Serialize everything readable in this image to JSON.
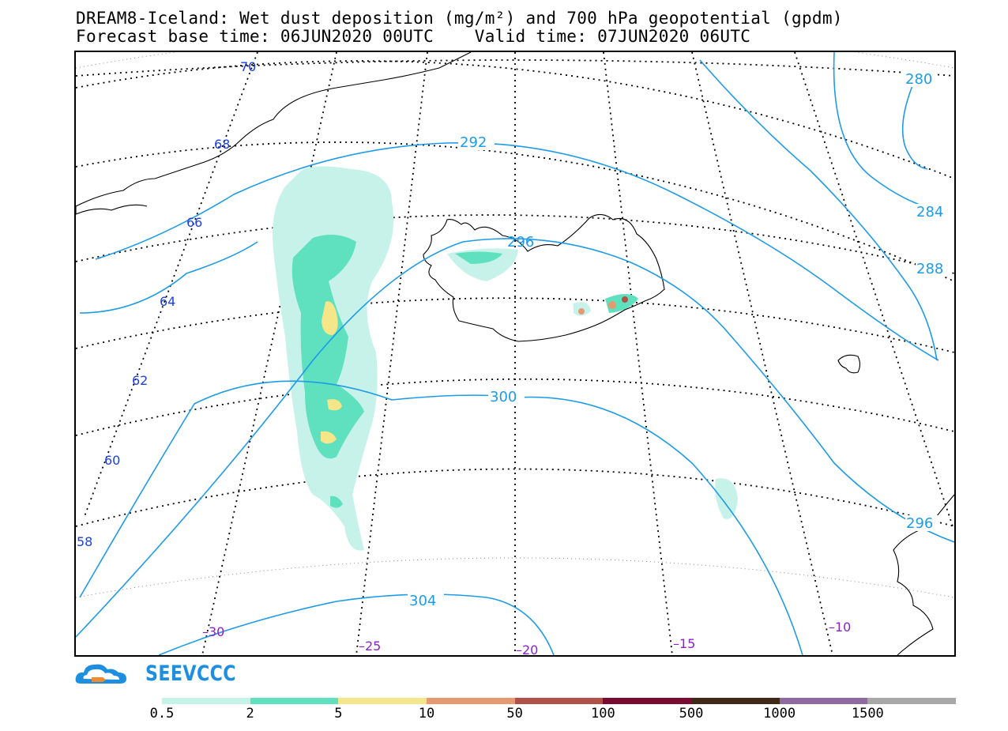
{
  "title": {
    "line1": "DREAM8-Iceland: Wet dust deposition (mg/m²) and 700 hPa geopotential (gpdm)",
    "line2": "Forecast base time: 06JUN2020 00UTC    Valid time: 07JUN2020 06UTC"
  },
  "map": {
    "latitude_labels": [
      "70",
      "68",
      "66",
      "64",
      "62",
      "60",
      "58"
    ],
    "longitude_labels": [
      "–30",
      "–25",
      "–20",
      "–15",
      "–10"
    ],
    "geopotential_contours": [
      "280",
      "284",
      "288",
      "292",
      "296",
      "296",
      "300",
      "304"
    ],
    "colors": {
      "contour": "#1e9be8",
      "latitude_label": "#1c3fe0",
      "longitude_label": "#8a1fd0"
    }
  },
  "logo": {
    "text": "SEEVCCC",
    "icon": "cloud-logo-icon"
  },
  "colorbar": {
    "colors": [
      "#c6f2ea",
      "#5fe0bf",
      "#f5e68a",
      "#e59a70",
      "#b05048",
      "#7a0a30",
      "#3f2a1a",
      "#8e6aa0",
      "#a8a8a8"
    ],
    "labels": [
      "0.5",
      "2",
      "5",
      "10",
      "50",
      "100",
      "500",
      "1000",
      "1500"
    ]
  }
}
